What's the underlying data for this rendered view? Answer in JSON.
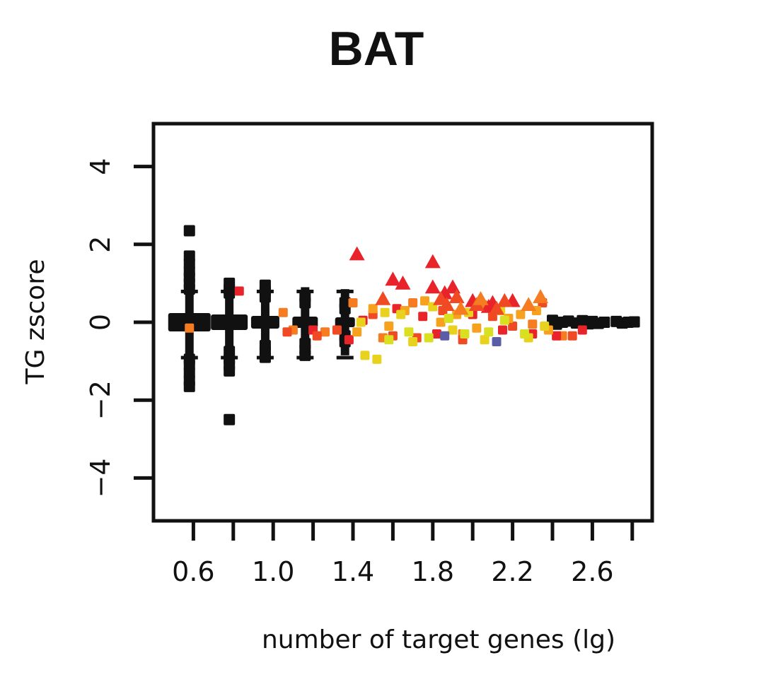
{
  "chart_data": {
    "type": "scatter",
    "title": "BAT",
    "xlabel": "number of target genes (lg)",
    "ylabel": "TG zscore",
    "xlim": [
      0.4,
      2.9
    ],
    "ylim": [
      -5.1,
      5.1
    ],
    "x_ticks": [
      0.6,
      0.8,
      1.0,
      1.2,
      1.4,
      1.6,
      1.8,
      2.0,
      2.2,
      2.4,
      2.6,
      2.8
    ],
    "x_tick_labels": [
      "0.6",
      "",
      "1.0",
      "",
      "1.4",
      "",
      "1.8",
      "",
      "2.2",
      "",
      "2.6",
      ""
    ],
    "y_ticks": [
      -4,
      -2,
      0,
      2,
      4
    ],
    "y_tick_labels": [
      "−4",
      "−2",
      "0",
      "2",
      "4"
    ],
    "grid": false,
    "legend": "none",
    "colors": {
      "black": "#111111",
      "red": "#e8232a",
      "red_orange": "#f04a24",
      "orange": "#f57c20",
      "light_orange": "#f7a21e",
      "yellow": "#e8d21e",
      "yellow_green": "#d9e021",
      "purple": "#5b5ea6"
    },
    "series": [
      {
        "marker": "square",
        "color": "black",
        "points": [
          [
            0.58,
            2.35
          ],
          [
            0.58,
            1.7
          ],
          [
            0.58,
            1.5
          ],
          [
            0.58,
            1.3
          ],
          [
            0.58,
            1.15
          ],
          [
            0.58,
            1.0
          ],
          [
            0.58,
            0.85
          ],
          [
            0.58,
            -0.95
          ],
          [
            0.58,
            -1.1
          ],
          [
            0.58,
            -1.3
          ],
          [
            0.58,
            -1.5
          ],
          [
            0.58,
            -1.65
          ],
          [
            0.78,
            1.0
          ],
          [
            0.78,
            0.85
          ],
          [
            0.78,
            0.75
          ],
          [
            0.78,
            -0.75
          ],
          [
            0.78,
            -0.95
          ],
          [
            0.78,
            -1.1
          ],
          [
            0.78,
            -1.25
          ],
          [
            0.78,
            -2.5
          ],
          [
            0.96,
            0.95
          ],
          [
            0.96,
            0.8
          ],
          [
            0.96,
            0.65
          ],
          [
            0.96,
            -0.6
          ],
          [
            0.96,
            -0.75
          ],
          [
            0.96,
            -0.9
          ],
          [
            1.16,
            0.65
          ],
          [
            1.16,
            0.5
          ],
          [
            1.16,
            -0.55
          ],
          [
            1.16,
            -0.7
          ],
          [
            1.16,
            -0.85
          ],
          [
            1.36,
            0.5
          ],
          [
            1.36,
            0.35
          ],
          [
            1.36,
            -0.35
          ],
          [
            1.36,
            -0.5
          ],
          [
            2.4,
            0.05
          ],
          [
            2.42,
            -0.05
          ],
          [
            2.45,
            0.0
          ],
          [
            2.48,
            0.03
          ],
          [
            2.52,
            -0.02
          ],
          [
            2.55,
            0.04
          ],
          [
            2.58,
            -0.04
          ],
          [
            2.6,
            0.02
          ],
          [
            2.63,
            -0.03
          ],
          [
            2.66,
            0.0
          ],
          [
            2.72,
            0.02
          ],
          [
            2.75,
            -0.02
          ],
          [
            2.78,
            0.0
          ],
          [
            2.81,
            0.01
          ]
        ]
      },
      {
        "marker": "square",
        "color": "orange",
        "points": [
          [
            0.58,
            -0.15
          ],
          [
            1.05,
            0.25
          ],
          [
            1.1,
            -0.2
          ],
          [
            1.26,
            -0.25
          ],
          [
            1.4,
            0.5
          ],
          [
            1.55,
            -0.4
          ],
          [
            1.7,
            0.5
          ],
          [
            1.95,
            -0.3
          ],
          [
            2.05,
            0.45
          ],
          [
            2.3,
            -0.05
          ],
          [
            2.45,
            -0.35
          ]
        ]
      },
      {
        "marker": "square",
        "color": "red",
        "points": [
          [
            0.83,
            0.8
          ],
          [
            1.2,
            -0.2
          ],
          [
            1.38,
            -0.45
          ],
          [
            1.45,
            0.05
          ],
          [
            1.62,
            0.35
          ],
          [
            1.75,
            0.15
          ],
          [
            1.82,
            -0.3
          ],
          [
            2.0,
            0.2
          ],
          [
            2.15,
            -0.2
          ],
          [
            2.3,
            -0.3
          ],
          [
            2.42,
            -0.35
          ],
          [
            2.55,
            -0.2
          ]
        ]
      },
      {
        "marker": "square",
        "color": "red_orange",
        "points": [
          [
            1.07,
            -0.25
          ],
          [
            1.22,
            -0.35
          ],
          [
            1.32,
            -0.2
          ],
          [
            1.5,
            0.2
          ],
          [
            1.6,
            -0.35
          ],
          [
            1.72,
            -0.4
          ],
          [
            1.85,
            0.3
          ],
          [
            1.95,
            -0.45
          ],
          [
            2.1,
            0.15
          ],
          [
            2.2,
            -0.1
          ],
          [
            2.35,
            0.5
          ],
          [
            2.5,
            -0.35
          ]
        ]
      },
      {
        "marker": "square",
        "color": "light_orange",
        "points": [
          [
            1.42,
            -0.25
          ],
          [
            1.5,
            0.35
          ],
          [
            1.58,
            -0.1
          ],
          [
            1.66,
            0.3
          ],
          [
            1.76,
            0.55
          ],
          [
            1.84,
            0.0
          ],
          [
            1.92,
            0.2
          ],
          [
            2.02,
            -0.15
          ],
          [
            2.1,
            0.35
          ],
          [
            2.18,
            0.1
          ],
          [
            2.24,
            0.2
          ],
          [
            2.32,
            0.3
          ],
          [
            2.38,
            -0.2
          ]
        ]
      },
      {
        "marker": "square",
        "color": "yellow",
        "points": [
          [
            1.44,
            0.0
          ],
          [
            1.46,
            -0.85
          ],
          [
            1.52,
            -0.95
          ],
          [
            1.56,
            0.25
          ],
          [
            1.64,
            0.2
          ],
          [
            1.7,
            -0.5
          ],
          [
            1.8,
            0.4
          ],
          [
            1.9,
            -0.2
          ],
          [
            1.98,
            0.25
          ],
          [
            2.06,
            -0.45
          ],
          [
            2.14,
            0.3
          ],
          [
            2.28,
            -0.4
          ],
          [
            2.36,
            -0.1
          ]
        ]
      },
      {
        "marker": "square",
        "color": "yellow_green",
        "points": [
          [
            1.58,
            -0.45
          ],
          [
            1.68,
            -0.25
          ],
          [
            1.78,
            -0.4
          ],
          [
            1.88,
            0.1
          ],
          [
            1.96,
            -0.3
          ],
          [
            2.08,
            -0.25
          ],
          [
            2.16,
            0.05
          ],
          [
            2.26,
            -0.3
          ]
        ]
      },
      {
        "marker": "square",
        "color": "purple",
        "points": [
          [
            2.12,
            -0.5
          ],
          [
            1.86,
            -0.35
          ]
        ]
      },
      {
        "marker": "triangle",
        "color": "red",
        "points": [
          [
            1.42,
            1.75
          ],
          [
            1.6,
            1.1
          ],
          [
            1.65,
            1.0
          ],
          [
            1.8,
            1.55
          ],
          [
            1.8,
            0.9
          ],
          [
            1.86,
            0.75
          ],
          [
            1.9,
            0.9
          ],
          [
            2.0,
            0.55
          ],
          [
            2.08,
            0.4
          ],
          [
            2.2,
            0.55
          ],
          [
            2.1,
            0.5
          ]
        ]
      },
      {
        "marker": "triangle",
        "color": "red_orange",
        "points": [
          [
            1.55,
            0.6
          ],
          [
            1.84,
            0.6
          ],
          [
            1.87,
            0.45
          ],
          [
            1.92,
            0.65
          ],
          [
            2.02,
            0.45
          ],
          [
            2.12,
            0.35
          ],
          [
            2.16,
            0.55
          ]
        ]
      },
      {
        "marker": "triangle",
        "color": "orange",
        "points": [
          [
            1.94,
            0.35
          ],
          [
            2.04,
            0.6
          ],
          [
            2.28,
            0.45
          ],
          [
            2.34,
            0.65
          ]
        ]
      }
    ]
  }
}
